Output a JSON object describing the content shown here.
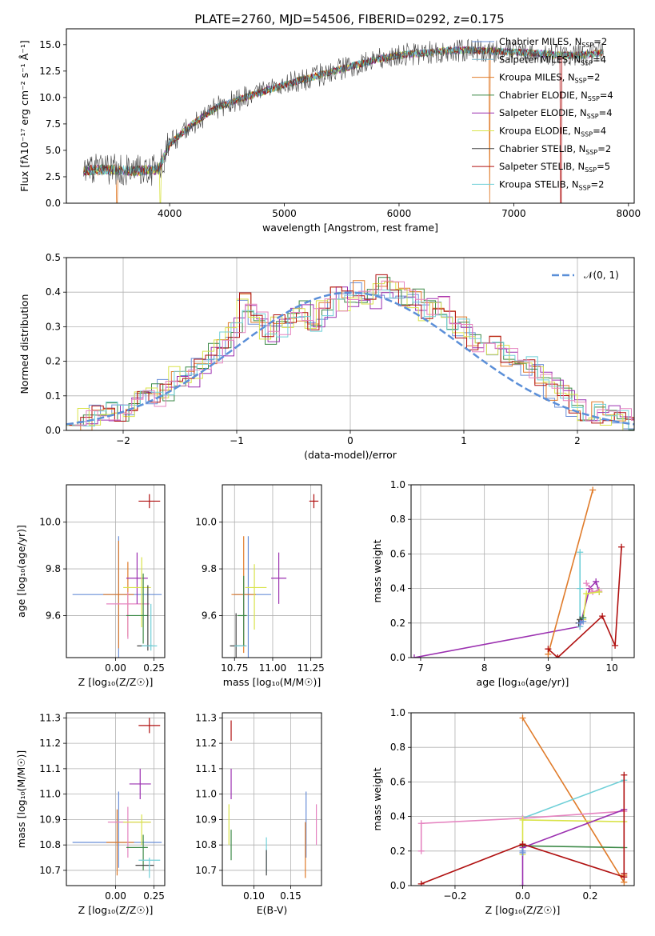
{
  "figure": {
    "title": "PLATE=2760, MJD=54506, FIBERID=0292, z=0.175"
  },
  "chart_data": [
    {
      "id": "spectrum",
      "type": "line",
      "xlabel": "wavelength [Angstrom, rest frame]",
      "ylabel": "Flux [fλ10⁻¹⁷ erg cm⁻² s⁻¹ Å⁻¹]",
      "xlim": [
        3100,
        8050
      ],
      "ylim": [
        0,
        16.5
      ],
      "xticks": [
        "4000",
        "5000",
        "6000",
        "7000",
        "8000"
      ],
      "yticks": [
        "0.0",
        "2.5",
        "5.0",
        "7.5",
        "10.0",
        "12.5",
        "15.0"
      ],
      "grid": false,
      "legend_position": "upper-right",
      "continuum": {
        "x": [
          3250,
          3500,
          3700,
          3900,
          4000,
          4200,
          4400,
          4600,
          4800,
          5000,
          5200,
          5400,
          5600,
          5800,
          6000,
          6200,
          6400,
          6600,
          6800,
          7000,
          7200,
          7400,
          7600,
          7800
        ],
        "y": [
          3.1,
          3.2,
          3.0,
          3.2,
          5.6,
          7.5,
          9.0,
          9.8,
          10.5,
          11.2,
          11.8,
          12.4,
          13.0,
          13.6,
          14.0,
          14.2,
          14.4,
          14.5,
          14.4,
          14.3,
          14.2,
          14.0,
          14.0,
          14.3
        ]
      },
      "series": [
        {
          "name": "Chabrier MILES, N_SSP=2",
          "color": "#6a8fd8"
        },
        {
          "name": "Salpeter MILES, N_SSP=4",
          "color": "#7fb3c8"
        },
        {
          "name": "Kroupa MILES, N_SSP=2",
          "color": "#e07b2a"
        },
        {
          "name": "Chabrier ELODIE, N_SSP=4",
          "color": "#3d8a48"
        },
        {
          "name": "Salpeter ELODIE, N_SSP=4",
          "color": "#9b30b0"
        },
        {
          "name": "Kroupa ELODIE, N_SSP=4",
          "color": "#d9e34a"
        },
        {
          "name": "Chabrier STELIB, N_SSP=2",
          "color": "#444444"
        },
        {
          "name": "Salpeter STELIB, N_SSP=5",
          "color": "#b01010"
        },
        {
          "name": "Kroupa STELIB, N_SSP=2",
          "color": "#70d0d8"
        }
      ]
    },
    {
      "id": "residuals",
      "type": "line",
      "xlabel": "(data-model)/error",
      "ylabel": "Normed distribution",
      "xlim": [
        -2.5,
        2.5
      ],
      "ylim": [
        0,
        0.5
      ],
      "xticks": [
        "−2",
        "−1",
        "0",
        "1",
        "2"
      ],
      "yticks": [
        "0.0",
        "0.1",
        "0.2",
        "0.3",
        "0.4",
        "0.5"
      ],
      "grid": true,
      "legend": "𝒩(0, 1)",
      "legend_position": "upper-right",
      "gaussian": {
        "mu": 0,
        "sigma": 1,
        "color": "#5b8fd8"
      },
      "bin_width": 0.1,
      "histogram": [
        0.03,
        0.03,
        0.04,
        0.05,
        0.06,
        0.07,
        0.08,
        0.1,
        0.12,
        0.15,
        0.15,
        0.18,
        0.22,
        0.25,
        0.3,
        0.37,
        0.33,
        0.28,
        0.3,
        0.33,
        0.34,
        0.32,
        0.35,
        0.38,
        0.37,
        0.4,
        0.38,
        0.42,
        0.4,
        0.39,
        0.38,
        0.35,
        0.36,
        0.32,
        0.3,
        0.26,
        0.28,
        0.24,
        0.22,
        0.2,
        0.18,
        0.16,
        0.12,
        0.1,
        0.07,
        0.06,
        0.05,
        0.04,
        0.03,
        0.02
      ]
    },
    {
      "id": "age-vs-Z",
      "type": "scatter",
      "xlabel": "Z [log₁₀(Z/Z☉)]",
      "ylabel": "age  [log₁₀(age/yr)]",
      "xlim": [
        -0.32,
        0.32
      ],
      "ylim": [
        9.42,
        10.16
      ],
      "xticks": [
        "0.00",
        "0.25"
      ],
      "yticks": [
        "9.6",
        "9.8",
        "10.0"
      ],
      "grid": true,
      "points": [
        {
          "x": 0.02,
          "y": 9.68,
          "xerr": 0.0,
          "yerr": 0.26,
          "color": "#6a8fd8"
        },
        {
          "x": 0.01,
          "y": 9.69,
          "xerr": 0.29,
          "yerr": 0.0,
          "color": "#6a8fd8"
        },
        {
          "x": 0.08,
          "y": 9.67,
          "xerr": 0.0,
          "yerr": 0.16,
          "color": "#e07b2a"
        },
        {
          "x": 0.02,
          "y": 9.69,
          "xerr": 0.1,
          "yerr": 0.23,
          "color": "#e07b2a"
        },
        {
          "x": 0.08,
          "y": 9.65,
          "xerr": 0.14,
          "yerr": 0.0,
          "color": "#e584c0"
        },
        {
          "x": 0.08,
          "y": 9.6,
          "xerr": 0.0,
          "yerr": 0.1,
          "color": "#e584c0"
        },
        {
          "x": 0.14,
          "y": 9.76,
          "xerr": 0.07,
          "yerr": 0.11,
          "color": "#9b30b0"
        },
        {
          "x": 0.14,
          "y": 9.72,
          "xerr": 0.09,
          "yerr": 0.0,
          "color": "#d9e34a"
        },
        {
          "x": 0.17,
          "y": 9.7,
          "xerr": 0.0,
          "yerr": 0.15,
          "color": "#d9e34a"
        },
        {
          "x": 0.14,
          "y": 9.6,
          "xerr": 0.07,
          "yerr": 0.0,
          "color": "#3d8a48"
        },
        {
          "x": 0.18,
          "y": 9.63,
          "xerr": 0.0,
          "yerr": 0.15,
          "color": "#3d8a48"
        },
        {
          "x": 0.21,
          "y": 9.59,
          "xerr": 0.0,
          "yerr": 0.14,
          "color": "#444444"
        },
        {
          "x": 0.19,
          "y": 9.47,
          "xerr": 0.05,
          "yerr": 0.0,
          "color": "#444444"
        },
        {
          "x": 0.23,
          "y": 9.55,
          "xerr": 0.0,
          "yerr": 0.1,
          "color": "#70d0d8"
        },
        {
          "x": 0.22,
          "y": 9.47,
          "xerr": 0.05,
          "yerr": 0.0,
          "color": "#70d0d8"
        },
        {
          "x": 0.22,
          "y": 10.09,
          "xerr": 0.07,
          "yerr": 0.03,
          "color": "#b01010"
        }
      ]
    },
    {
      "id": "age-vs-mass",
      "type": "scatter",
      "xlabel": "mass [log₁₀(M/M☉)]",
      "ylabel": "",
      "xlim": [
        10.67,
        11.32
      ],
      "ylim": [
        9.42,
        10.16
      ],
      "xticks": [
        "10.75",
        "11.00",
        "11.25"
      ],
      "yticks": [
        "9.6",
        "9.8",
        "10.0"
      ],
      "grid": true,
      "points": [
        {
          "x": 10.84,
          "y": 9.68,
          "xerr": 0.0,
          "yerr": 0.26,
          "color": "#6a8fd8"
        },
        {
          "x": 10.87,
          "y": 9.69,
          "xerr": 0.12,
          "yerr": 0.0,
          "color": "#6a8fd8"
        },
        {
          "x": 10.81,
          "y": 9.69,
          "xerr": 0.08,
          "yerr": 0.25,
          "color": "#e07b2a"
        },
        {
          "x": 10.81,
          "y": 9.61,
          "xerr": 0.0,
          "yerr": 0.1,
          "color": "#e584c0"
        },
        {
          "x": 11.04,
          "y": 9.76,
          "xerr": 0.05,
          "yerr": 0.11,
          "color": "#9b30b0"
        },
        {
          "x": 10.89,
          "y": 9.72,
          "xerr": 0.07,
          "yerr": 0.0,
          "color": "#d9e34a"
        },
        {
          "x": 10.88,
          "y": 9.68,
          "xerr": 0.0,
          "yerr": 0.14,
          "color": "#d9e34a"
        },
        {
          "x": 10.8,
          "y": 9.6,
          "xerr": 0.03,
          "yerr": 0.0,
          "color": "#3d8a48"
        },
        {
          "x": 10.81,
          "y": 9.62,
          "xerr": 0.0,
          "yerr": 0.15,
          "color": "#3d8a48"
        },
        {
          "x": 10.76,
          "y": 9.48,
          "xerr": 0.0,
          "yerr": 0.13,
          "color": "#444444"
        },
        {
          "x": 10.77,
          "y": 9.47,
          "xerr": 0.05,
          "yerr": 0.0,
          "color": "#444444"
        },
        {
          "x": 10.79,
          "y": 9.47,
          "xerr": 0.04,
          "yerr": 0.0,
          "color": "#70d0d8"
        },
        {
          "x": 11.27,
          "y": 10.09,
          "xerr": 0.03,
          "yerr": 0.03,
          "color": "#b01010"
        }
      ]
    },
    {
      "id": "weight-vs-age",
      "type": "line",
      "xlabel": "age  [log₁₀(age/yr)]",
      "ylabel": "mass weight",
      "xlim": [
        6.85,
        10.35
      ],
      "ylim": [
        0,
        1.0
      ],
      "xticks": [
        "7",
        "8",
        "9",
        "10"
      ],
      "yticks": [
        "0.0",
        "0.2",
        "0.4",
        "0.6",
        "0.8",
        "1.0"
      ],
      "grid": true,
      "series": [
        {
          "color": "#9b30b0",
          "x": [
            6.9,
            9.5,
            9.65,
            9.75,
            9.8
          ],
          "y": [
            0.0,
            0.18,
            0.4,
            0.44,
            0.38
          ]
        },
        {
          "color": "#e07b2a",
          "x": [
            9.0,
            9.7
          ],
          "y": [
            0.02,
            0.97
          ]
        },
        {
          "color": "#b01010",
          "x": [
            9.0,
            9.15,
            9.85,
            10.05,
            10.15
          ],
          "y": [
            0.05,
            0.0,
            0.24,
            0.07,
            0.64
          ]
        },
        {
          "color": "#70d0d8",
          "x": [
            9.5,
            9.5,
            9.5
          ],
          "y": [
            0.61,
            0.4,
            0.18
          ]
        },
        {
          "color": "#e584c0",
          "x": [
            9.6,
            9.7,
            9.8
          ],
          "y": [
            0.43,
            0.38,
            0.39
          ]
        },
        {
          "color": "#d9e34a",
          "x": [
            9.55,
            9.6,
            9.8
          ],
          "y": [
            0.22,
            0.37,
            0.38
          ]
        },
        {
          "color": "#3d8a48",
          "x": [
            9.5,
            9.55
          ],
          "y": [
            0.22,
            0.23
          ]
        },
        {
          "color": "#444444",
          "x": [
            9.48,
            9.5
          ],
          "y": [
            0.2,
            0.22
          ]
        },
        {
          "color": "#6a8fd8",
          "x": [
            9.5,
            9.55
          ],
          "y": [
            0.2,
            0.21
          ]
        }
      ]
    },
    {
      "id": "mass-vs-Z",
      "type": "scatter",
      "xlabel": "Z [log₁₀(Z/Z☉)]",
      "ylabel": "mass [log₁₀(M/M☉)]",
      "xlim": [
        -0.32,
        0.32
      ],
      "ylim": [
        10.64,
        11.32
      ],
      "xticks": [
        "0.00",
        "0.25"
      ],
      "yticks": [
        "10.7",
        "10.8",
        "10.9",
        "11.0",
        "11.1",
        "11.2",
        "11.3"
      ],
      "grid": true,
      "points": [
        {
          "x": 0.02,
          "y": 10.86,
          "xerr": 0.0,
          "yerr": 0.15,
          "color": "#6a8fd8"
        },
        {
          "x": 0.01,
          "y": 10.81,
          "xerr": 0.29,
          "yerr": 0.0,
          "color": "#6a8fd8"
        },
        {
          "x": 0.01,
          "y": 10.81,
          "xerr": 0.0,
          "yerr": 0.13,
          "color": "#e07b2a"
        },
        {
          "x": 0.03,
          "y": 10.81,
          "xerr": 0.09,
          "yerr": 0.0,
          "color": "#e07b2a"
        },
        {
          "x": 0.09,
          "y": 10.89,
          "xerr": 0.14,
          "yerr": 0.0,
          "color": "#e584c0"
        },
        {
          "x": 0.08,
          "y": 10.85,
          "xerr": 0.0,
          "yerr": 0.1,
          "color": "#e584c0"
        },
        {
          "x": 0.16,
          "y": 11.04,
          "xerr": 0.07,
          "yerr": 0.06,
          "color": "#9b30b0"
        },
        {
          "x": 0.14,
          "y": 10.89,
          "xerr": 0.09,
          "yerr": 0.0,
          "color": "#d9e34a"
        },
        {
          "x": 0.17,
          "y": 10.86,
          "xerr": 0.0,
          "yerr": 0.06,
          "color": "#d9e34a"
        },
        {
          "x": 0.14,
          "y": 10.79,
          "xerr": 0.07,
          "yerr": 0.0,
          "color": "#3d8a48"
        },
        {
          "x": 0.18,
          "y": 10.77,
          "xerr": 0.0,
          "yerr": 0.07,
          "color": "#3d8a48"
        },
        {
          "x": 0.19,
          "y": 10.72,
          "xerr": 0.06,
          "yerr": 0.0,
          "color": "#444444"
        },
        {
          "x": 0.22,
          "y": 10.74,
          "xerr": 0.07,
          "yerr": 0.0,
          "color": "#70d0d8"
        },
        {
          "x": 0.22,
          "y": 10.71,
          "xerr": 0.0,
          "yerr": 0.04,
          "color": "#70d0d8"
        },
        {
          "x": 0.22,
          "y": 11.27,
          "xerr": 0.07,
          "yerr": 0.03,
          "color": "#b01010"
        }
      ]
    },
    {
      "id": "mass-vs-EBV",
      "type": "scatter",
      "xlabel": "E(B-V)",
      "ylabel": "",
      "xlim": [
        0.057,
        0.192
      ],
      "ylim": [
        10.64,
        11.32
      ],
      "xticks": [
        "0.10",
        "0.15"
      ],
      "yticks": [
        "10.7",
        "10.8",
        "10.9",
        "11.0",
        "11.1",
        "11.2",
        "11.3"
      ],
      "grid": true,
      "points": [
        {
          "x": 0.171,
          "y": 10.88,
          "xerr": 0.0,
          "yerr": 0.13,
          "color": "#6a8fd8"
        },
        {
          "x": 0.17,
          "y": 10.78,
          "xerr": 0.0,
          "yerr": 0.11,
          "color": "#e07b2a"
        },
        {
          "x": 0.185,
          "y": 10.88,
          "xerr": 0.0,
          "yerr": 0.08,
          "color": "#e584c0"
        },
        {
          "x": 0.069,
          "y": 11.04,
          "xerr": 0.0,
          "yerr": 0.06,
          "color": "#9b30b0"
        },
        {
          "x": 0.066,
          "y": 10.88,
          "xerr": 0.0,
          "yerr": 0.08,
          "color": "#d9e34a"
        },
        {
          "x": 0.069,
          "y": 10.8,
          "xerr": 0.0,
          "yerr": 0.06,
          "color": "#3d8a48"
        },
        {
          "x": 0.117,
          "y": 10.76,
          "xerr": 0.0,
          "yerr": 0.07,
          "color": "#70d0d8"
        },
        {
          "x": 0.117,
          "y": 10.73,
          "xerr": 0.0,
          "yerr": 0.05,
          "color": "#444444"
        },
        {
          "x": 0.069,
          "y": 11.25,
          "xerr": 0.0,
          "yerr": 0.04,
          "color": "#b01010"
        }
      ]
    },
    {
      "id": "weight-vs-Z",
      "type": "line",
      "xlabel": "Z [log₁₀(Z/Z☉)]",
      "ylabel": "mass weight",
      "xlim": [
        -0.33,
        0.33
      ],
      "ylim": [
        0,
        1.0
      ],
      "xticks": [
        "−0.2",
        "0.0",
        "0.2"
      ],
      "yticks": [
        "0.0",
        "0.2",
        "0.4",
        "0.6",
        "0.8",
        "1.0"
      ],
      "grid": true,
      "series": [
        {
          "color": "#e07b2a",
          "x": [
            0.0,
            0.3,
            0.3
          ],
          "y": [
            0.97,
            0.02,
            0.06
          ]
        },
        {
          "color": "#70d0d8",
          "x": [
            0.0,
            0.3
          ],
          "y": [
            0.39,
            0.61
          ]
        },
        {
          "color": "#e584c0",
          "x": [
            -0.3,
            -0.3,
            0.0,
            0.3
          ],
          "y": [
            0.2,
            0.36,
            0.39,
            0.43
          ]
        },
        {
          "color": "#d9e34a",
          "x": [
            0.0,
            0.0,
            0.3
          ],
          "y": [
            0.18,
            0.38,
            0.37
          ]
        },
        {
          "color": "#3d8a48",
          "x": [
            0.0,
            0.3
          ],
          "y": [
            0.23,
            0.22
          ]
        },
        {
          "color": "#9b30b0",
          "x": [
            0.0,
            0.0,
            0.3
          ],
          "y": [
            0.0,
            0.22,
            0.44
          ]
        },
        {
          "color": "#b01010",
          "x": [
            -0.3,
            0.0,
            0.3,
            0.3,
            0.3
          ],
          "y": [
            0.01,
            0.24,
            0.05,
            0.64,
            0.07
          ]
        },
        {
          "color": "#6a8fd8",
          "x": [
            0.0,
            0.0
          ],
          "y": [
            0.19,
            0.2
          ]
        }
      ]
    }
  ]
}
